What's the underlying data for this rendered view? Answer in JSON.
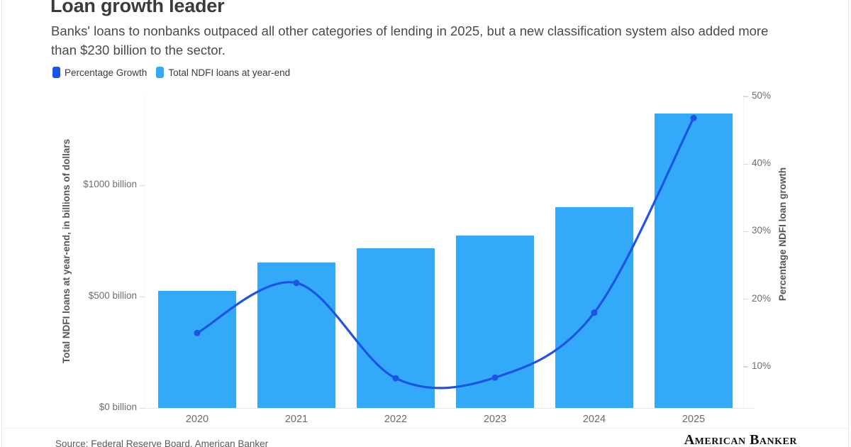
{
  "header": {
    "title": "Loan growth leader",
    "subtitle": "Banks' loans to nonbanks outpaced all other categories of lending in 2025, but a new classification system also added more than $230 billion to the sector."
  },
  "legend": [
    {
      "label": "Percentage Growth",
      "color": "#1d54e3"
    },
    {
      "label": "Total NDFI loans at year-end",
      "color": "#33a9f9"
    }
  ],
  "chart_data": {
    "type": "combo-bar-line",
    "categories": [
      "2020",
      "2021",
      "2022",
      "2023",
      "2024",
      "2025"
    ],
    "series": [
      {
        "name": "Total NDFI loans at year-end",
        "type": "bar",
        "axis": "left",
        "unit": "billions of dollars",
        "color": "#33a9f9",
        "values": [
          525,
          652,
          716,
          774,
          901,
          1322
        ]
      },
      {
        "name": "Percentage Growth",
        "type": "line",
        "axis": "right",
        "unit": "percent",
        "color": "#1d54e3",
        "values": [
          15,
          22.4,
          8.3,
          8.4,
          18,
          46.8
        ]
      }
    ],
    "left_axis": {
      "label": "Total NDFI loans at year-end, in billions of dollars",
      "ylim": [
        0,
        1408
      ],
      "ticks": [
        {
          "label": "$0 billion",
          "value": 0
        },
        {
          "label": "$500 billion",
          "value": 500
        },
        {
          "label": "$1000 billion",
          "value": 1000
        }
      ]
    },
    "right_axis": {
      "label": "Percentage NDFI loan growth",
      "ylim": [
        3.9,
        50.3
      ],
      "ticks": [
        {
          "label": "10%",
          "value": 10
        },
        {
          "label": "20%",
          "value": 20
        },
        {
          "label": "30%",
          "value": 30
        },
        {
          "label": "40%",
          "value": 40
        },
        {
          "label": "50%",
          "value": 50
        }
      ]
    },
    "grid": false,
    "legend_position": "top-left"
  },
  "footer": {
    "source": "Source: Federal Reserve Board, American Banker",
    "logo_text": "American Banker"
  }
}
